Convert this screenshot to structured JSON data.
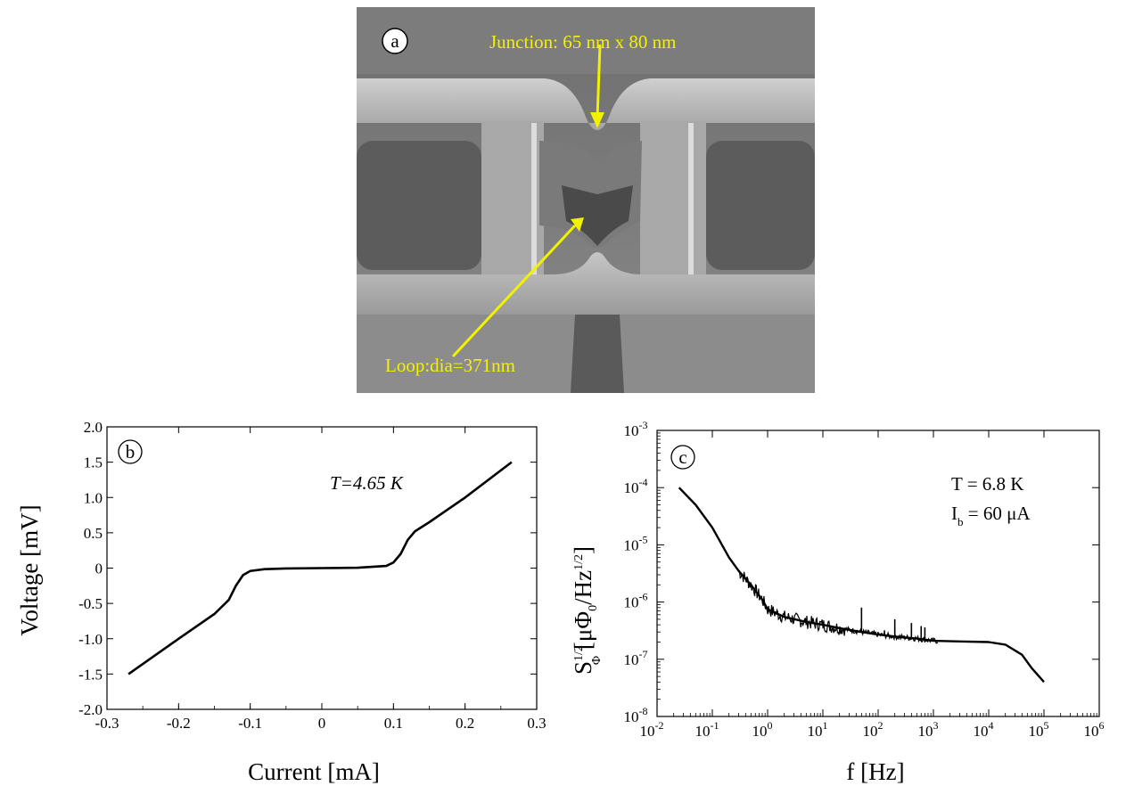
{
  "panels": {
    "a": {
      "label": "a",
      "junction_text": "Junction: 65 nm x 80 nm",
      "loop_text": "Loop:dia=371nm",
      "arrow_color": "#f2f200"
    },
    "b": {
      "label": "b"
    },
    "c": {
      "label": "c"
    }
  },
  "chart_data": [
    {
      "id": "b",
      "type": "line",
      "xlabel": "Current [mA]",
      "ylabel": "Voltage [mV]",
      "xlim": [
        -0.3,
        0.3
      ],
      "ylim": [
        -2.0,
        2.0
      ],
      "xticks": [
        -0.3,
        -0.2,
        -0.1,
        0,
        0.1,
        0.2,
        0.3
      ],
      "xtick_labels": [
        "-0.3",
        "-0.2",
        "-0.1",
        "0",
        "0.1",
        "0.2",
        "0.3"
      ],
      "yticks": [
        -2.0,
        -1.5,
        -1.0,
        -0.5,
        0,
        0.5,
        1.0,
        1.5,
        2.0
      ],
      "ytick_labels": [
        "-2.0",
        "-1.5",
        "-1.0",
        "-0.5",
        "0",
        "0.5",
        "1.0",
        "1.5",
        "2.0"
      ],
      "annotation": "T=4.65 K",
      "grid": false,
      "series": [
        {
          "x": [
            -0.27,
            -0.2,
            -0.15,
            -0.13,
            -0.12,
            -0.11,
            -0.1,
            -0.08,
            -0.05,
            0,
            0.05,
            0.09,
            0.1,
            0.11,
            0.12,
            0.13,
            0.15,
            0.2,
            0.265
          ],
          "y": [
            -1.5,
            -1.0,
            -0.65,
            -0.45,
            -0.25,
            -0.1,
            -0.04,
            -0.015,
            -0.005,
            0,
            0.005,
            0.03,
            0.08,
            0.2,
            0.4,
            0.52,
            0.65,
            1.0,
            1.5
          ]
        }
      ]
    },
    {
      "id": "c",
      "type": "line",
      "xlabel": "f [Hz]",
      "ylabel": "S_Φ^1/2 [μΦ0/Hz^1/2]",
      "ylabel_parts": {
        "s": "S",
        "sup": "1/2",
        "sub": "Φ",
        "a": " [μΦ",
        "sub0": "0",
        "b": "/Hz",
        "sup2": "1/2",
        "c": "]"
      },
      "xscale": "log",
      "yscale": "log",
      "xlim": [
        0.01,
        1000000
      ],
      "ylim": [
        1e-08,
        0.001
      ],
      "xtick_exponents": [
        -2,
        -1,
        0,
        1,
        2,
        3,
        4,
        5,
        6
      ],
      "ytick_exponents": [
        -8,
        -7,
        -6,
        -5,
        -4,
        -3
      ],
      "annotation_lines": [
        {
          "a": "T = 6.8 K"
        },
        {
          "a": "I",
          "sub": "b",
          "b": " = 60 μA"
        }
      ],
      "grid": false,
      "series": [
        {
          "x": [
            0.025,
            0.05,
            0.1,
            0.2,
            0.3,
            0.5,
            0.8,
            1,
            2,
            5,
            10,
            20,
            50,
            100,
            200,
            500,
            1000,
            3000,
            10000,
            20000,
            40000,
            60000,
            100000
          ],
          "y": [
            0.0001,
            5e-05,
            2e-05,
            6e-06,
            3.5e-06,
            2e-06,
            1.1e-06,
            7.5e-07,
            5.5e-07,
            4.5e-07,
            4e-07,
            3.5e-07,
            3e-07,
            2.7e-07,
            2.5e-07,
            2.3e-07,
            2.1e-07,
            2.05e-07,
            2e-07,
            1.8e-07,
            1.2e-07,
            7e-08,
            4e-08
          ]
        }
      ],
      "spikes": [
        {
          "x": 50,
          "y": 8e-07
        },
        {
          "x": 130,
          "y": 3.2e-07
        },
        {
          "x": 200,
          "y": 5e-07
        },
        {
          "x": 400,
          "y": 4.3e-07
        },
        {
          "x": 600,
          "y": 3.8e-07
        },
        {
          "x": 700,
          "y": 3.6e-07
        }
      ]
    }
  ]
}
